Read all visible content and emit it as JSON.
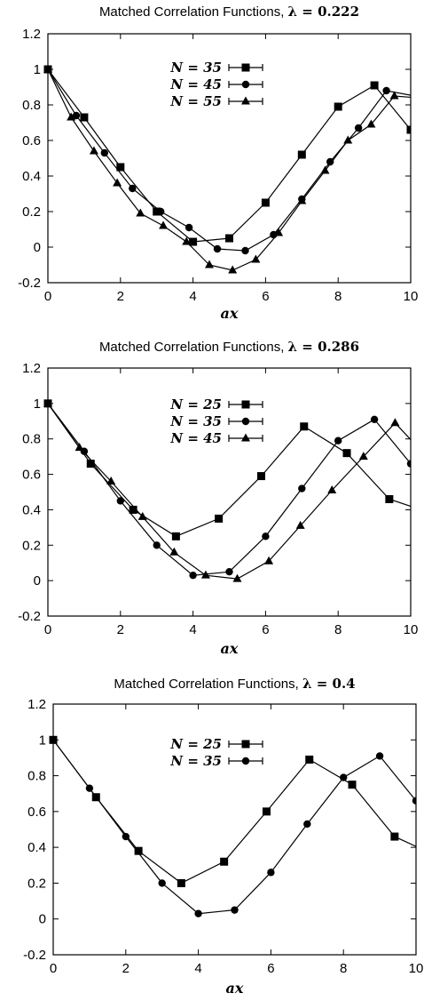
{
  "chart_data": [
    {
      "type": "line",
      "title": "Matched Correlation Functions, ",
      "title_math": "λ = 0.222",
      "xlabel": "ax",
      "ylabel": "",
      "xlim": [
        0,
        10
      ],
      "ylim": [
        -0.2,
        1.2
      ],
      "x_ticks": [
        "0",
        "2",
        "4",
        "6",
        "8",
        "10"
      ],
      "y_ticks": [
        "-0.2",
        "0",
        "0.2",
        "0.4",
        "0.6",
        "0.8",
        "1",
        "1.2"
      ],
      "legend_position": "top-center",
      "series": [
        {
          "name": "N = 35",
          "marker": "square",
          "x": [
            0,
            1.0,
            2.0,
            3.0,
            4.0,
            5.0,
            6.0,
            7.0,
            8.0,
            9.0,
            10.0
          ],
          "y": [
            1.0,
            0.73,
            0.45,
            0.2,
            0.03,
            0.05,
            0.25,
            0.52,
            0.79,
            0.91,
            0.66
          ]
        },
        {
          "name": "N = 45",
          "marker": "circle",
          "x": [
            0,
            0.78,
            1.56,
            2.33,
            3.11,
            3.89,
            4.67,
            5.44,
            6.22,
            7.0,
            7.78,
            8.56,
            9.33,
            10.11
          ],
          "y": [
            1.0,
            0.74,
            0.53,
            0.33,
            0.2,
            0.11,
            -0.01,
            -0.02,
            0.07,
            0.27,
            0.48,
            0.67,
            0.88,
            0.85
          ]
        },
        {
          "name": "N = 55",
          "marker": "triangle",
          "x": [
            0,
            0.64,
            1.27,
            1.91,
            2.55,
            3.18,
            3.82,
            4.45,
            5.09,
            5.73,
            6.36,
            7.0,
            7.64,
            8.27,
            8.91,
            9.55,
            10.18
          ],
          "y": [
            1.0,
            0.73,
            0.54,
            0.36,
            0.19,
            0.12,
            0.03,
            -0.1,
            -0.13,
            -0.07,
            0.08,
            0.26,
            0.43,
            0.6,
            0.69,
            0.85,
            0.84
          ]
        }
      ]
    },
    {
      "type": "line",
      "title": "Matched Correlation Functions, ",
      "title_math": "λ = 0.286",
      "xlabel": "ax",
      "ylabel": "",
      "xlim": [
        0,
        10
      ],
      "ylim": [
        -0.2,
        1.2
      ],
      "x_ticks": [
        "0",
        "2",
        "4",
        "6",
        "8",
        "10"
      ],
      "y_ticks": [
        "-0.2",
        "0",
        "0.2",
        "0.4",
        "0.6",
        "0.8",
        "1",
        "1.2"
      ],
      "legend_position": "top-center",
      "series": [
        {
          "name": "N = 25",
          "marker": "square",
          "x": [
            0,
            1.18,
            2.35,
            3.53,
            4.71,
            5.88,
            7.06,
            8.24,
            9.41,
            10.59
          ],
          "y": [
            1.0,
            0.66,
            0.4,
            0.25,
            0.35,
            0.59,
            0.87,
            0.72,
            0.46,
            0.38
          ]
        },
        {
          "name": "N = 35",
          "marker": "circle",
          "x": [
            0,
            1.0,
            2.0,
            3.0,
            4.0,
            5.0,
            6.0,
            7.0,
            8.0,
            9.0,
            10.0
          ],
          "y": [
            1.0,
            0.73,
            0.45,
            0.2,
            0.03,
            0.05,
            0.25,
            0.52,
            0.79,
            0.91,
            0.66
          ]
        },
        {
          "name": "N = 45",
          "marker": "triangle",
          "x": [
            0,
            0.87,
            1.74,
            2.61,
            3.48,
            4.35,
            5.22,
            6.09,
            6.96,
            7.83,
            8.7,
            9.57,
            10.44
          ],
          "y": [
            1.0,
            0.75,
            0.56,
            0.36,
            0.16,
            0.03,
            0.01,
            0.11,
            0.31,
            0.51,
            0.7,
            0.89,
            0.7
          ]
        }
      ]
    },
    {
      "type": "line",
      "title": "Matched Correlation Functions, ",
      "title_math": "λ = 0.4",
      "xlabel": "ax",
      "ylabel": "",
      "xlim": [
        0,
        10
      ],
      "ylim": [
        -0.2,
        1.2
      ],
      "x_ticks": [
        "0",
        "2",
        "4",
        "6",
        "8",
        "10"
      ],
      "y_ticks": [
        "-0.2",
        "0",
        "0.2",
        "0.4",
        "0.6",
        "0.8",
        "1",
        "1.2"
      ],
      "legend_position": "top-center",
      "series": [
        {
          "name": "N = 25",
          "marker": "square",
          "x": [
            0,
            1.18,
            2.35,
            3.53,
            4.71,
            5.88,
            7.06,
            8.24,
            9.41,
            10.59
          ],
          "y": [
            1.0,
            0.68,
            0.38,
            0.2,
            0.32,
            0.6,
            0.89,
            0.75,
            0.46,
            0.35
          ]
        },
        {
          "name": "N = 35",
          "marker": "circle",
          "x": [
            0,
            1.0,
            2.0,
            3.0,
            4.0,
            5.0,
            6.0,
            7.0,
            8.0,
            9.0,
            10.0
          ],
          "y": [
            1.0,
            0.73,
            0.46,
            0.2,
            0.03,
            0.05,
            0.26,
            0.53,
            0.79,
            0.91,
            0.66
          ]
        }
      ]
    }
  ]
}
